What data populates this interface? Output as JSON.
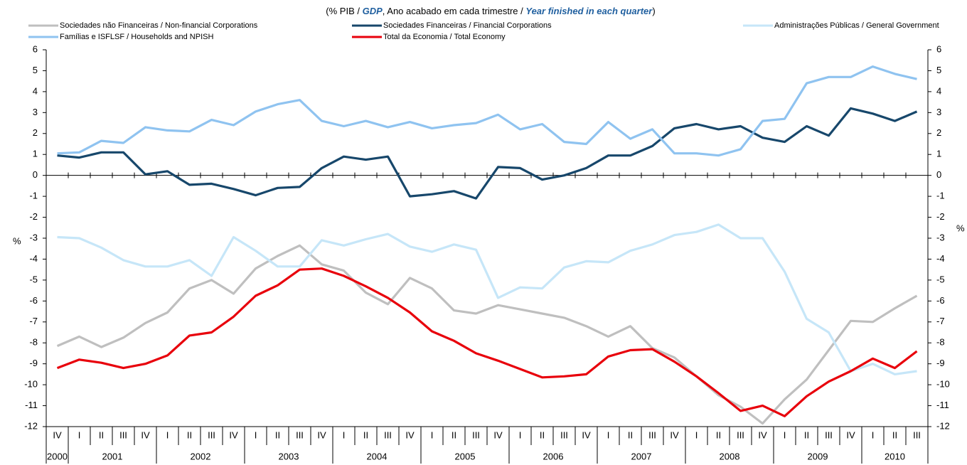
{
  "chart_data": {
    "type": "line",
    "title_parts": [
      "(% PIB / ",
      "GDP",
      ", Ano acabado em cada trimestre / ",
      "Year finished in each quarter",
      ")"
    ],
    "y_label": "%",
    "y2_label": "%",
    "categories": [
      "IV",
      "I",
      "II",
      "III",
      "IV",
      "I",
      "II",
      "III",
      "IV",
      "I",
      "II",
      "III",
      "IV",
      "I",
      "II",
      "III",
      "IV",
      "I",
      "II",
      "III",
      "IV",
      "I",
      "II",
      "III",
      "IV",
      "I",
      "II",
      "III",
      "IV",
      "I",
      "II",
      "III",
      "IV",
      "I",
      "II",
      "III",
      "IV",
      "I",
      "II",
      "III"
    ],
    "years": [
      "2000",
      "2001",
      "2002",
      "2003",
      "2004",
      "2005",
      "2006",
      "2007",
      "2008",
      "2009",
      "2010"
    ],
    "ylim": [
      -12,
      6
    ],
    "yticks": [
      -12,
      -11,
      -10,
      -9,
      -8,
      -7,
      -6,
      -5,
      -4,
      -3,
      -2,
      -1,
      0,
      1,
      2,
      3,
      4,
      5,
      6
    ],
    "y2lim": [
      -12,
      6
    ],
    "y2ticks": [
      -12,
      -11,
      -10,
      -9,
      -8,
      -7,
      -6,
      -5,
      -4,
      -3,
      -2,
      -1,
      0,
      1,
      2,
      3,
      4,
      5,
      6
    ],
    "series": [
      {
        "name": "Sociedades não Financeiras / Non-financial Corporations",
        "color": "#bfbfbf",
        "values": [
          -8.15,
          -7.7,
          -8.2,
          -7.75,
          -7.05,
          -6.55,
          -5.4,
          -5.0,
          -5.65,
          -4.45,
          -3.85,
          -3.35,
          -4.25,
          -4.55,
          -5.6,
          -6.15,
          -4.9,
          -5.4,
          -6.45,
          -6.6,
          -6.2,
          -6.4,
          -6.6,
          -6.8,
          -7.2,
          -7.7,
          -7.2,
          -8.25,
          -8.7,
          -9.6,
          -10.5,
          -11.05,
          -11.85,
          -10.7,
          -9.75,
          -8.35,
          -6.95,
          -7.0,
          -6.35,
          -5.75
        ]
      },
      {
        "name": "Sociedades Financeiras / Financial Corporations",
        "color": "#17476b",
        "values": [
          0.95,
          0.85,
          1.1,
          1.1,
          0.05,
          0.2,
          -0.45,
          -0.4,
          -0.65,
          -0.95,
          -0.6,
          -0.55,
          0.35,
          0.9,
          0.75,
          0.9,
          -1.0,
          -0.9,
          -0.75,
          -1.1,
          0.4,
          0.35,
          -0.2,
          0.0,
          0.35,
          0.95,
          0.95,
          1.4,
          2.25,
          2.45,
          2.2,
          2.35,
          1.8,
          1.6,
          2.35,
          1.9,
          3.2,
          2.95,
          2.6,
          3.05
        ]
      },
      {
        "name": "Administrações Públicas / General Government",
        "color": "#c6e6f8",
        "values": [
          -2.95,
          -3.0,
          -3.45,
          -4.05,
          -4.35,
          -4.35,
          -4.05,
          -4.8,
          -2.95,
          -3.6,
          -4.35,
          -4.35,
          -3.1,
          -3.35,
          -3.05,
          -2.8,
          -3.4,
          -3.65,
          -3.3,
          -3.55,
          -5.85,
          -5.35,
          -5.4,
          -4.4,
          -4.1,
          -4.15,
          -3.6,
          -3.3,
          -2.85,
          -2.7,
          -2.35,
          -3.0,
          -3.0,
          -4.6,
          -6.85,
          -7.5,
          -9.35,
          -9.0,
          -9.5,
          -9.35
        ]
      },
      {
        "name": "Famílias e ISFLSF / Households and NPISH",
        "color": "#8fc3f0",
        "values": [
          1.05,
          1.1,
          1.65,
          1.55,
          2.3,
          2.15,
          2.1,
          2.65,
          2.4,
          3.05,
          3.4,
          3.6,
          2.6,
          2.35,
          2.6,
          2.3,
          2.55,
          2.25,
          2.4,
          2.5,
          2.9,
          2.2,
          2.45,
          1.6,
          1.5,
          2.55,
          1.75,
          2.2,
          1.05,
          1.05,
          0.95,
          1.25,
          2.6,
          2.7,
          4.4,
          4.7,
          4.7,
          5.2,
          4.85,
          4.6
        ]
      },
      {
        "name": "Total da Economia / Total Economy",
        "color": "#e8000b",
        "values": [
          -9.2,
          -8.8,
          -8.95,
          -9.2,
          -9.0,
          -8.6,
          -7.65,
          -7.5,
          -6.75,
          -5.75,
          -5.25,
          -4.5,
          -4.45,
          -4.8,
          -5.3,
          -5.85,
          -6.55,
          -7.45,
          -7.9,
          -8.5,
          -8.85,
          -9.25,
          -9.65,
          -9.6,
          -9.5,
          -8.65,
          -8.35,
          -8.3,
          -8.9,
          -9.6,
          -10.4,
          -11.25,
          -11.0,
          -11.5,
          -10.55,
          -9.85,
          -9.35,
          -8.75,
          -9.2,
          -8.4
        ]
      }
    ]
  }
}
